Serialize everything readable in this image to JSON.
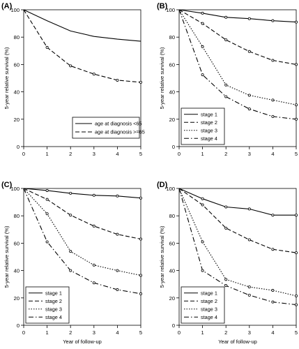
{
  "chart_data": [
    {
      "type": "line",
      "panel_label": "(A)",
      "xlabel": "",
      "ylabel": "5-year relative survival (%)",
      "xlim": [
        0,
        5
      ],
      "ylim": [
        0,
        100
      ],
      "x_ticks": [
        "0",
        "1",
        "2",
        "3",
        "4",
        "5"
      ],
      "y_ticks": [
        "0",
        "20",
        "40",
        "60",
        "80",
        "100"
      ],
      "grid": false,
      "legend_position": "bottom-right",
      "x": [
        0,
        1,
        2,
        3,
        4,
        5
      ],
      "series": [
        {
          "name": "age at diagnosis <65",
          "style": "solid",
          "marker": "none",
          "values": [
            100,
            92,
            84.5,
            80.5,
            78.5,
            77
          ]
        },
        {
          "name": "age at diagnosis >=65",
          "style": "dashed",
          "marker": "circle",
          "values": [
            100,
            72.5,
            59,
            53,
            48.5,
            47
          ]
        }
      ]
    },
    {
      "type": "line",
      "panel_label": "(B)",
      "xlabel": "",
      "ylabel": "5-year relative survival (%)",
      "xlim": [
        0,
        5
      ],
      "ylim": [
        0,
        100
      ],
      "x_ticks": [
        "0",
        "1",
        "2",
        "3",
        "4",
        "5"
      ],
      "y_ticks": [
        "0",
        "20",
        "40",
        "60",
        "80",
        "100"
      ],
      "grid": false,
      "legend_position": "bottom-left",
      "x": [
        0,
        1,
        2,
        3,
        4,
        5
      ],
      "series": [
        {
          "name": "stage 1",
          "style": "solid",
          "marker": "circle",
          "values": [
            100,
            97.5,
            94.5,
            93.5,
            92,
            91
          ]
        },
        {
          "name": "stage 2",
          "style": "dashed",
          "marker": "circle",
          "values": [
            100,
            90,
            78,
            69.5,
            63,
            60
          ]
        },
        {
          "name": "stage 3",
          "style": "dotted",
          "marker": "circle",
          "values": [
            100,
            73,
            45,
            37.5,
            34,
            30.5
          ]
        },
        {
          "name": "stage 4",
          "style": "dashdot",
          "marker": "circle",
          "values": [
            100,
            52.5,
            36.5,
            27.5,
            22,
            20
          ]
        }
      ]
    },
    {
      "type": "line",
      "panel_label": "(C)",
      "xlabel": "Year of follow-up",
      "ylabel": "5-year relative survival (%)",
      "xlim": [
        0,
        5
      ],
      "ylim": [
        0,
        100
      ],
      "x_ticks": [
        "0",
        "1",
        "2",
        "3",
        "4",
        "5"
      ],
      "y_ticks": [
        "0",
        "20",
        "40",
        "60",
        "80",
        "100"
      ],
      "grid": false,
      "legend_position": "bottom-left",
      "x": [
        0,
        1,
        2,
        3,
        4,
        5
      ],
      "series": [
        {
          "name": "stage 1",
          "style": "solid",
          "marker": "circle",
          "values": [
            100,
            98.5,
            96.5,
            95,
            94.5,
            93
          ]
        },
        {
          "name": "stage 2",
          "style": "dashed",
          "marker": "circle",
          "values": [
            100,
            92,
            80.5,
            72.5,
            66.5,
            63
          ]
        },
        {
          "name": "stage 3",
          "style": "dotted",
          "marker": "circle",
          "values": [
            100,
            81.5,
            54,
            44,
            40,
            36.5
          ]
        },
        {
          "name": "stage 4",
          "style": "dashdot",
          "marker": "circle",
          "values": [
            100,
            61,
            40,
            31,
            26,
            23
          ]
        }
      ]
    },
    {
      "type": "line",
      "panel_label": "(D)",
      "xlabel": "Year of follow-up",
      "ylabel": "5-year relative survival (%)",
      "xlim": [
        0,
        5
      ],
      "ylim": [
        0,
        100
      ],
      "x_ticks": [
        "0",
        "1",
        "2",
        "3",
        "4",
        "5"
      ],
      "y_ticks": [
        "0",
        "20",
        "40",
        "60",
        "80",
        "100"
      ],
      "grid": false,
      "legend_position": "bottom-left",
      "x": [
        0,
        1,
        2,
        3,
        4,
        5
      ],
      "series": [
        {
          "name": "stage 1",
          "style": "solid",
          "marker": "circle",
          "values": [
            100,
            92.5,
            86.5,
            85,
            80.5,
            80.5
          ]
        },
        {
          "name": "stage 2",
          "style": "dashed",
          "marker": "circle",
          "values": [
            100,
            88,
            71,
            62.5,
            55.5,
            53
          ]
        },
        {
          "name": "stage 3",
          "style": "dotted",
          "marker": "circle",
          "values": [
            100,
            61,
            33.5,
            28,
            25.5,
            21.5
          ]
        },
        {
          "name": "stage 4",
          "style": "dashdot",
          "marker": "circle",
          "values": [
            100,
            40,
            29,
            22,
            17,
            15
          ]
        }
      ]
    }
  ]
}
